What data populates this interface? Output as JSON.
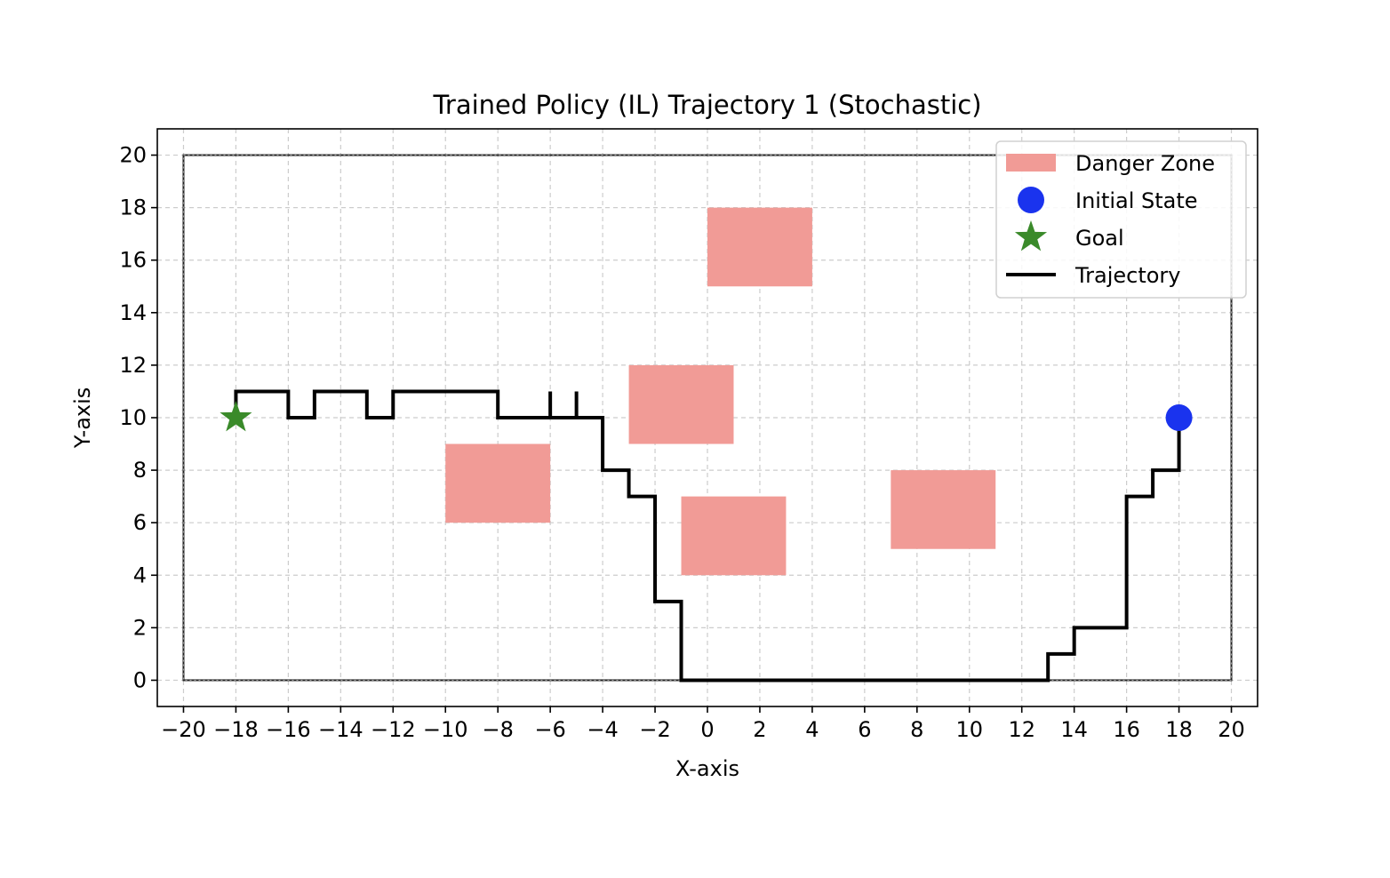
{
  "chart_data": {
    "type": "line",
    "title": "Trained Policy (IL) Trajectory 1 (Stochastic)",
    "xlabel": "X-axis",
    "ylabel": "Y-axis",
    "xlim": [
      -21,
      21
    ],
    "ylim": [
      -1,
      21
    ],
    "xticks": [
      -20,
      -18,
      -16,
      -14,
      -12,
      -10,
      -8,
      -6,
      -4,
      -2,
      0,
      2,
      4,
      6,
      8,
      10,
      12,
      14,
      16,
      18,
      20
    ],
    "yticks": [
      0,
      2,
      4,
      6,
      8,
      10,
      12,
      14,
      16,
      18,
      20
    ],
    "grid": true,
    "legend_position": "top-right",
    "legend": [
      {
        "label": "Danger Zone",
        "kind": "patch"
      },
      {
        "label": "Initial State",
        "kind": "circle"
      },
      {
        "label": "Goal",
        "kind": "star"
      },
      {
        "label": "Trajectory",
        "kind": "line"
      }
    ],
    "colors": {
      "danger_zone": "#f19b96",
      "initial_state": "#1a33ee",
      "goal": "#3a8a2a",
      "trajectory": "#000000",
      "grid": "#cccccc"
    },
    "boundary": {
      "x": [
        -20,
        20
      ],
      "y": [
        0,
        20
      ]
    },
    "danger_zones": [
      {
        "x": [
          0,
          4
        ],
        "y": [
          15,
          18
        ]
      },
      {
        "x": [
          -3,
          1
        ],
        "y": [
          9,
          12
        ]
      },
      {
        "x": [
          -10,
          -6
        ],
        "y": [
          6,
          9
        ]
      },
      {
        "x": [
          -1,
          3
        ],
        "y": [
          4,
          7
        ]
      },
      {
        "x": [
          7,
          11
        ],
        "y": [
          5,
          8
        ]
      }
    ],
    "initial_state": {
      "x": 18,
      "y": 10
    },
    "goal": {
      "x": -18,
      "y": 10
    },
    "trajectory": {
      "x": [
        18,
        18,
        17,
        17,
        16,
        16,
        14,
        14,
        13,
        13,
        -1,
        -1,
        -2,
        -2,
        -3,
        -3,
        -4,
        -4,
        -5,
        -5,
        -5,
        -6,
        -6,
        -6,
        -8,
        -8,
        -12,
        -12,
        -13,
        -13,
        -15,
        -15,
        -16,
        -16,
        -18,
        -18
      ],
      "y": [
        10,
        8,
        8,
        7,
        7,
        2,
        2,
        1,
        1,
        0,
        0,
        3,
        3,
        7,
        7,
        8,
        8,
        10,
        10,
        11,
        10,
        10,
        11,
        10,
        10,
        11,
        11,
        10,
        10,
        11,
        11,
        10,
        10,
        11,
        11,
        10
      ]
    }
  }
}
